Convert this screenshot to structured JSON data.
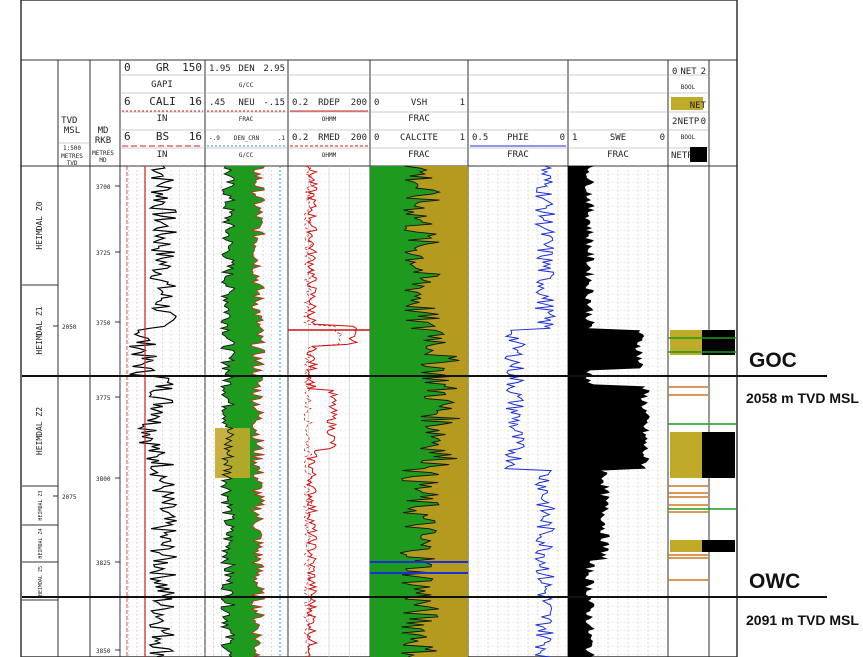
{
  "header": {
    "tvd_label": "TVD\nMSL",
    "tvd_scale": "1:500",
    "tvd_units": "METRES\nTVD",
    "md_label": "MD\nRKB",
    "md_units": "METRES\nMD",
    "gr": {
      "min": "0",
      "name": "GR",
      "max": "150",
      "unit": "GAPI"
    },
    "cali": {
      "min": "6",
      "name": "CALI",
      "max": "16",
      "unit": "IN"
    },
    "bs": {
      "min": "6",
      "name": "BS",
      "max": "16",
      "unit": "IN"
    },
    "den": {
      "min": "1.95",
      "name": "DEN",
      "max": "2.95",
      "unit": "G/CC"
    },
    "neu": {
      "min": ".45",
      "name": "NEU",
      "max": "-.15",
      "unit": "FRAC"
    },
    "den_crn": {
      "min": "-.9",
      "name": "DEN_CRN",
      "max": ".1",
      "unit": "G/CC"
    },
    "rdep": {
      "min": "0.2",
      "name": "RDEP",
      "max": "200",
      "unit": "OHMM"
    },
    "rmed": {
      "min": "0.2",
      "name": "RMED",
      "max": "200",
      "unit": "OHMM"
    },
    "vsh": {
      "min": "0",
      "name": "VSH",
      "max": "1",
      "unit": "FRAC"
    },
    "calcite": {
      "min": "0",
      "name": "CALCITE",
      "max": "1",
      "unit": "FRAC"
    },
    "phie": {
      "min": "0.5",
      "name": "PHIE",
      "max": "0",
      "unit": "FRAC"
    },
    "swe": {
      "min": "1",
      "name": "SWE",
      "max": "0",
      "unit": "FRAC"
    },
    "net": {
      "min": "0",
      "name": "NET",
      "max": "2",
      "unit": "BOOL",
      "legend": "NET"
    },
    "netp": {
      "min": "2",
      "name": "NETP",
      "max": "0",
      "unit": "BOOL",
      "legend": "NETP"
    }
  },
  "zones": [
    "HEIMDAL Z0",
    "HEIMDAL Z1",
    "HEIMDAL Z2",
    "HEIMDAL Z3",
    "HEIMDAL Z4",
    "HEIMDAL Z5"
  ],
  "tvd_ticks": [
    "2050",
    "2075"
  ],
  "md_ticks": [
    "3700",
    "3725",
    "3750",
    "3775",
    "3800",
    "3825",
    "3850"
  ],
  "contacts": {
    "goc": {
      "label": "GOC",
      "depth": "2058",
      "unit": "m TVD MSL"
    },
    "owc": {
      "label": "OWC",
      "depth": "2091",
      "unit": "m TVD MSL"
    }
  },
  "colors": {
    "gas": "#c0aa2a",
    "green": "#1e9a1e",
    "gr_curve": "#000000",
    "cali_curve": "#d42020",
    "res_curve": "#cc1111",
    "phie_curve": "#1a2fd6",
    "neu_curve": "#2aa7a7",
    "gas_sand": "#b49a1e"
  }
}
